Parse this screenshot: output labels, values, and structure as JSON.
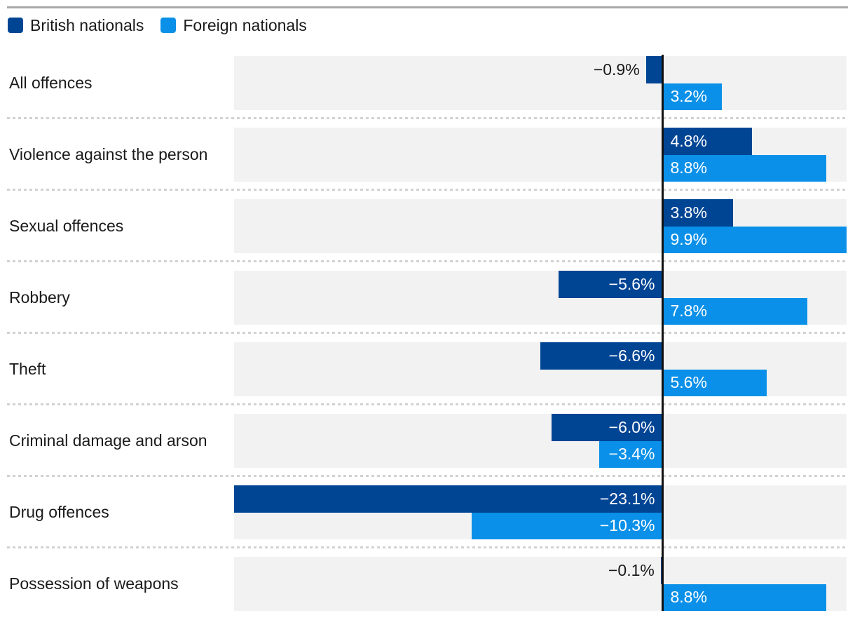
{
  "legend": {
    "items": [
      {
        "label": "British nationals",
        "color": "#004494"
      },
      {
        "label": "Foreign nationals",
        "color": "#0a90e8"
      }
    ]
  },
  "colors": {
    "british": "#004494",
    "foreign": "#0a90e8",
    "band_background": "#f2f2f2",
    "zero_axis": "#111111",
    "text": "#1a1a1a",
    "top_rule": "#a9a9a9",
    "dotted_separator": "#d2d2d2"
  },
  "chart_data": {
    "type": "bar",
    "orientation": "horizontal",
    "title": "",
    "xlabel": "",
    "ylabel": "",
    "value_suffix": "%",
    "xlim": [
      -23.1,
      9.9
    ],
    "baseline": 0,
    "grid": "off",
    "legend_position": "top-left",
    "categories": [
      "All offences",
      "Violence against the person",
      "Sexual offences",
      "Robbery",
      "Theft",
      "Criminal damage and arson",
      "Drug offences",
      "Possession of weapons"
    ],
    "series": [
      {
        "name": "British nationals",
        "color": "#004494",
        "values": [
          -0.9,
          4.8,
          3.8,
          -5.6,
          -6.6,
          -6.0,
          -23.1,
          -0.1
        ],
        "labels": [
          "−0.9%",
          "4.8%",
          "3.8%",
          "−5.6%",
          "−6.6%",
          "−6.0%",
          "−23.1%",
          "−0.1%"
        ]
      },
      {
        "name": "Foreign nationals",
        "color": "#0a90e8",
        "values": [
          3.2,
          8.8,
          9.9,
          7.8,
          5.6,
          -3.4,
          -10.3,
          8.8
        ],
        "labels": [
          "3.2%",
          "8.8%",
          "9.9%",
          "7.8%",
          "5.6%",
          "−3.4%",
          "−10.3%",
          "8.8%"
        ]
      }
    ]
  }
}
